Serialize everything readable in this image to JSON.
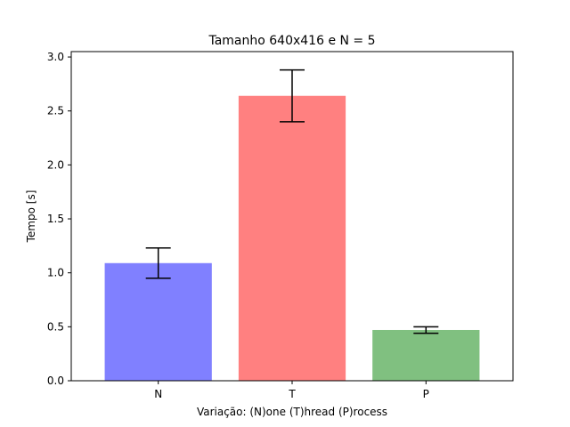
{
  "chart_data": {
    "type": "bar",
    "title": "Tamanho 640x416 e N = 5",
    "xlabel": "Variação: (N)one (T)hread (P)rocess",
    "ylabel": "Tempo [s]",
    "categories": [
      "N",
      "T",
      "P"
    ],
    "values": [
      1.09,
      2.64,
      0.47
    ],
    "error_bars": [
      {
        "low": 0.95,
        "high": 1.23
      },
      {
        "low": 2.4,
        "high": 2.88
      },
      {
        "low": 0.44,
        "high": 0.5
      }
    ],
    "colors": [
      "#8080ff",
      "#ff8080",
      "#80c080"
    ],
    "ylim": [
      0,
      3.05
    ],
    "yticks": [
      0.0,
      0.5,
      1.0,
      1.5,
      2.0,
      2.5,
      3.0
    ],
    "ytick_labels": [
      "0.0",
      "0.5",
      "1.0",
      "1.5",
      "2.0",
      "2.5",
      "3.0"
    ],
    "grid": false,
    "legend": "none"
  }
}
